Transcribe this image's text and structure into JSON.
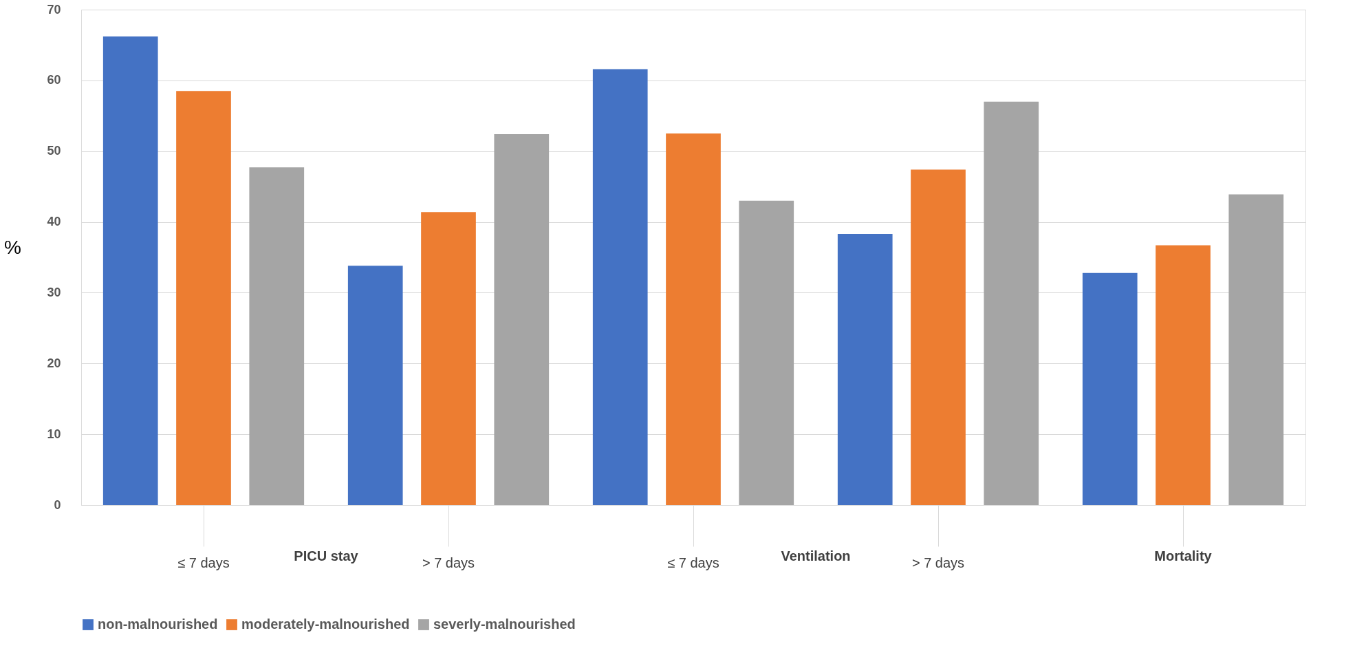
{
  "chart_data": {
    "type": "bar",
    "ylabel": "%",
    "categories": [
      "≤ 7 days",
      "> 7 days",
      "≤ 7 days",
      "> 7 days",
      null
    ],
    "series": [
      {
        "name": "non-malnourished",
        "color": "#4472c4",
        "values": [
          66.2,
          33.8,
          61.6,
          38.3,
          32.8
        ]
      },
      {
        "name": "moderately-malnourished",
        "color": "#ed7d31",
        "values": [
          58.5,
          41.4,
          52.5,
          47.4,
          36.7
        ]
      },
      {
        "name": "severly-malnourished",
        "color": "#a5a5a5",
        "values": [
          47.7,
          52.4,
          43.0,
          57.0,
          43.9
        ]
      }
    ],
    "annotations": [
      "PICU stay",
      "Ventilation",
      "Mortality"
    ],
    "ylim": [
      0,
      70
    ],
    "yticks": [
      0,
      10,
      20,
      30,
      40,
      50,
      60,
      70
    ],
    "grid": "y",
    "legend": "bottom"
  }
}
